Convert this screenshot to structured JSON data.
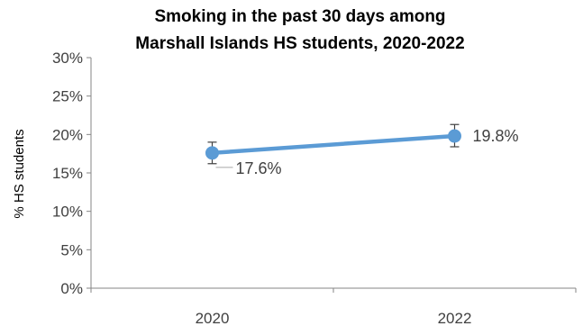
{
  "chart_data": {
    "type": "line",
    "title_lines": [
      "Smoking in the past 30 days among",
      "Marshall Islands HS students, 2020-2022"
    ],
    "ylabel": "% HS students",
    "xlabel": "",
    "categories": [
      "2020",
      "2022"
    ],
    "yticks": [
      "0%",
      "5%",
      "10%",
      "15%",
      "20%",
      "25%",
      "30%"
    ],
    "ylim": [
      0,
      30
    ],
    "grid": false,
    "series": [
      {
        "values": [
          17.6,
          19.8
        ],
        "ci_low": [
          16.2,
          18.4
        ],
        "ci_high": [
          19.0,
          21.3
        ],
        "labels": [
          "17.6%",
          "19.8%"
        ],
        "color": "#5b9bd5"
      }
    ]
  }
}
